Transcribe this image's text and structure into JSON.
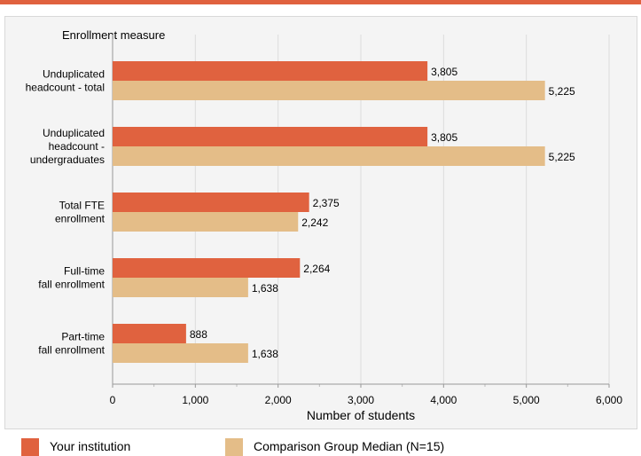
{
  "chart_data": {
    "type": "bar",
    "orientation": "horizontal",
    "title": "Enrollment measure",
    "xlabel": "Number of students",
    "xlim": [
      0,
      6000
    ],
    "xticks": [
      0,
      1000,
      2000,
      3000,
      4000,
      5000,
      6000
    ],
    "xtick_labels": [
      "0",
      "1,000",
      "2,000",
      "3,000",
      "4,000",
      "5,000",
      "6,000"
    ],
    "grid": true,
    "legend_position": "bottom",
    "categories": [
      [
        "Unduplicated",
        "headcount - total"
      ],
      [
        "Unduplicated",
        "headcount -",
        "undergraduates"
      ],
      [
        "Total FTE",
        "enrollment"
      ],
      [
        "Full-time",
        "fall enrollment"
      ],
      [
        "Part-time",
        "fall enrollment"
      ]
    ],
    "series": [
      {
        "name": "Your institution",
        "color": "#e0623f",
        "values": [
          3805,
          3805,
          2375,
          2264,
          888
        ],
        "labels": [
          "3,805",
          "3,805",
          "2,375",
          "2,264",
          "888"
        ]
      },
      {
        "name": "Comparison Group Median (N=15)",
        "color": "#e4bd88",
        "values": [
          5225,
          5225,
          2242,
          1638,
          1638
        ],
        "labels": [
          "5,225",
          "5,225",
          "2,242",
          "1,638",
          "1,638"
        ]
      }
    ]
  },
  "colors": {
    "accent": "#e0623f",
    "comparison": "#e4bd88",
    "panel_bg": "#f4f4f4",
    "grid": "#dcdcdc"
  }
}
